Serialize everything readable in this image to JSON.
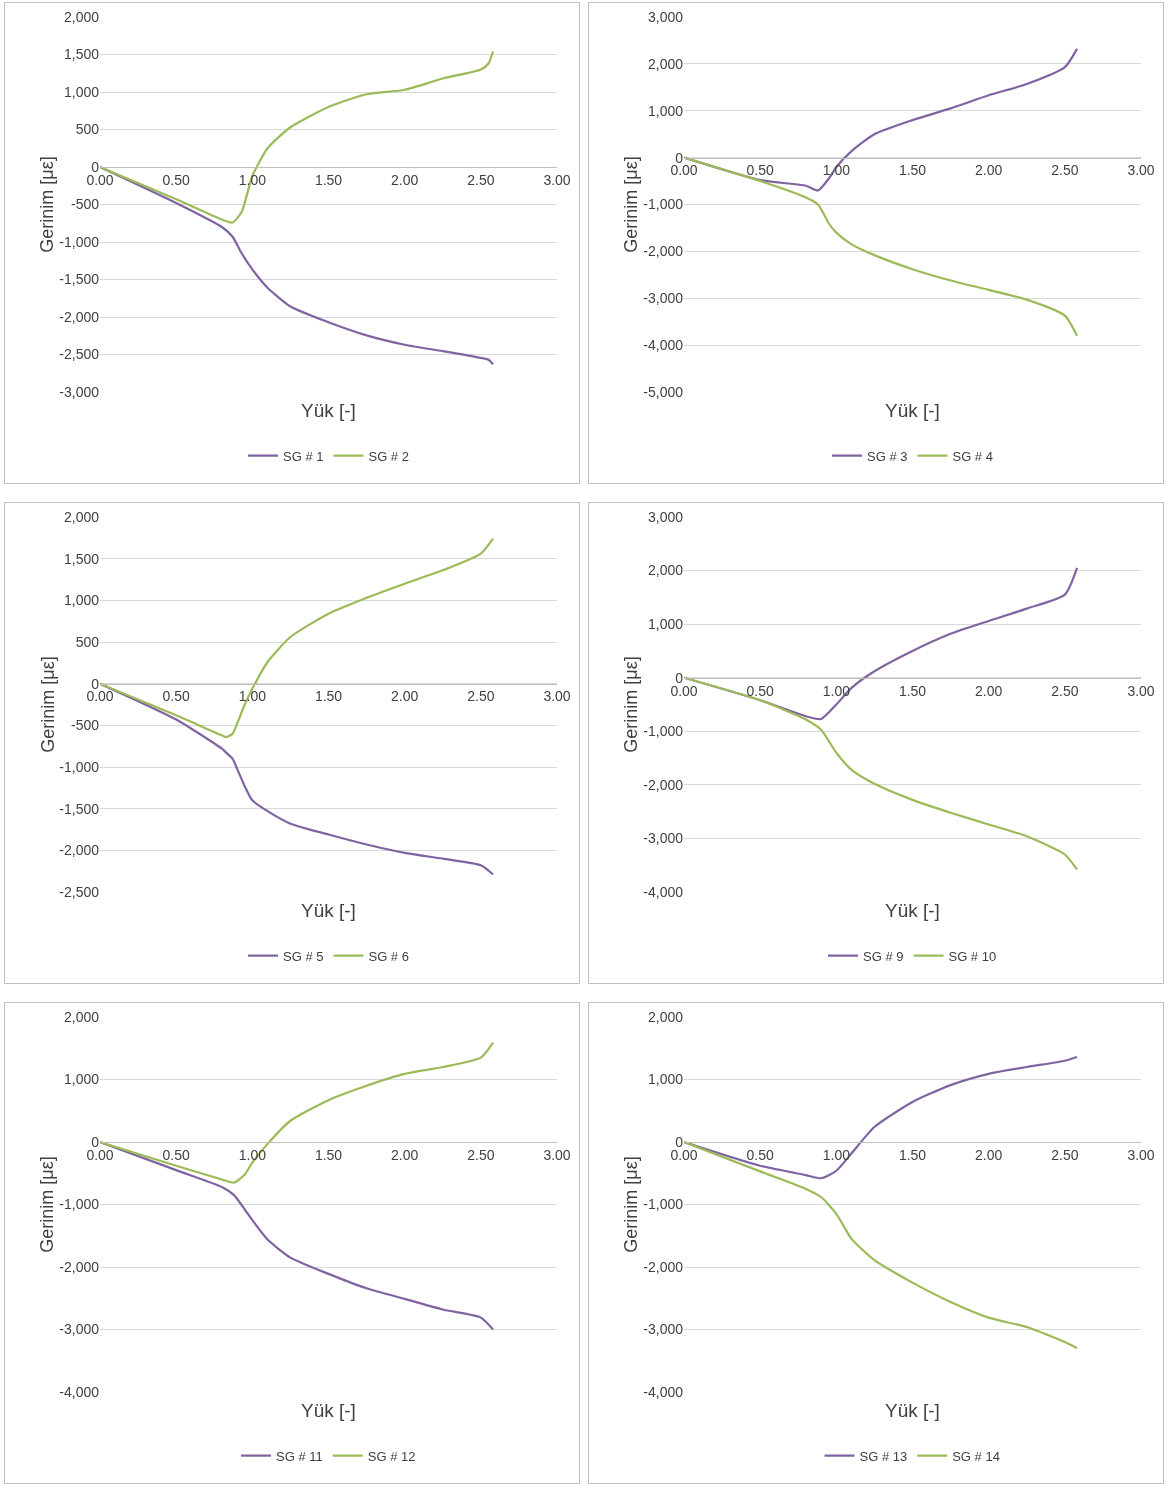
{
  "chart_data": [
    {
      "type": "line",
      "xlabel": "Yük [-]",
      "ylabel": "Gerinim [με]",
      "grid": "y",
      "legend": "bottom",
      "x": [
        0,
        0.5,
        0.8,
        0.87,
        0.93,
        1.0,
        1.1,
        1.25,
        1.5,
        1.75,
        2.0,
        2.25,
        2.5,
        2.55,
        2.58
      ],
      "xlim": [
        0,
        3
      ],
      "xticks": [
        {
          "value": 0,
          "label": "0.00"
        },
        {
          "value": 0.5,
          "label": "0.50"
        },
        {
          "value": 1,
          "label": "1.00"
        },
        {
          "value": 1.5,
          "label": "1.50"
        },
        {
          "value": 2,
          "label": "2.00"
        },
        {
          "value": 2.5,
          "label": "2.50"
        },
        {
          "value": 3,
          "label": "3.00"
        }
      ],
      "ylim": [
        -3000,
        2000
      ],
      "yticks": [
        {
          "value": -3000,
          "label": "-3,000"
        },
        {
          "value": -2500,
          "label": "-2,500"
        },
        {
          "value": -2000,
          "label": "-2,000"
        },
        {
          "value": -1500,
          "label": "-1,500"
        },
        {
          "value": -1000,
          "label": "-1,000"
        },
        {
          "value": -500,
          "label": "-500"
        },
        {
          "value": 0,
          "label": "0"
        },
        {
          "value": 500,
          "label": "500"
        },
        {
          "value": 1000,
          "label": "1,000"
        },
        {
          "value": 1500,
          "label": "1,500"
        },
        {
          "value": 2000,
          "label": "2,000"
        }
      ],
      "series": [
        {
          "name": "SG # 1",
          "color": "#8064a2",
          "values": [
            0,
            -480,
            -800,
            -930,
            -1150,
            -1365,
            -1610,
            -1860,
            -2070,
            -2245,
            -2370,
            -2455,
            -2545,
            -2570,
            -2630
          ]
        },
        {
          "name": "SG # 2",
          "color": "#9bbb59",
          "values": [
            0,
            -430,
            -700,
            -740,
            -600,
            -120,
            250,
            530,
            800,
            970,
            1030,
            1180,
            1300,
            1380,
            1540
          ]
        }
      ]
    },
    {
      "type": "line",
      "xlabel": "Yük [-]",
      "ylabel": "Gerinim [με]",
      "grid": "y",
      "legend": "bottom",
      "x": [
        0,
        0.5,
        0.8,
        0.88,
        0.95,
        1.0,
        1.1,
        1.25,
        1.5,
        1.75,
        2.0,
        2.25,
        2.5,
        2.58
      ],
      "xlim": [
        0,
        3
      ],
      "xticks": [
        {
          "value": 0,
          "label": "0.00"
        },
        {
          "value": 0.5,
          "label": "0.50"
        },
        {
          "value": 1,
          "label": "1.00"
        },
        {
          "value": 1.5,
          "label": "1.50"
        },
        {
          "value": 2,
          "label": "2.00"
        },
        {
          "value": 2.5,
          "label": "2.50"
        },
        {
          "value": 3,
          "label": "3.00"
        }
      ],
      "ylim": [
        -5000,
        3000
      ],
      "yticks": [
        {
          "value": -5000,
          "label": "-5,000"
        },
        {
          "value": -4000,
          "label": "-4,000"
        },
        {
          "value": -3000,
          "label": "-3,000"
        },
        {
          "value": -2000,
          "label": "-2,000"
        },
        {
          "value": -1000,
          "label": "-1,000"
        },
        {
          "value": 0,
          "label": "0"
        },
        {
          "value": 1000,
          "label": "1,000"
        },
        {
          "value": 2000,
          "label": "2,000"
        },
        {
          "value": 3000,
          "label": "3,000"
        }
      ],
      "series": [
        {
          "name": "SG # 3",
          "color": "#8064a2",
          "values": [
            0,
            -480,
            -600,
            -700,
            -450,
            -200,
            140,
            500,
            800,
            1050,
            1330,
            1570,
            1930,
            2320
          ]
        },
        {
          "name": "SG # 4",
          "color": "#9bbb59",
          "values": [
            0,
            -500,
            -850,
            -1000,
            -1400,
            -1600,
            -1850,
            -2080,
            -2380,
            -2620,
            -2820,
            -3030,
            -3370,
            -3800
          ]
        }
      ]
    },
    {
      "type": "line",
      "xlabel": "Yük [-]",
      "ylabel": "Gerinim [με]",
      "grid": "y",
      "legend": "bottom",
      "x": [
        0,
        0.5,
        0.8,
        0.83,
        0.87,
        0.9,
        0.95,
        1.0,
        1.1,
        1.25,
        1.5,
        1.75,
        2.0,
        2.25,
        2.5,
        2.58
      ],
      "xlim": [
        0,
        3
      ],
      "xticks": [
        {
          "value": 0,
          "label": "0.00"
        },
        {
          "value": 0.5,
          "label": "0.50"
        },
        {
          "value": 1,
          "label": "1.00"
        },
        {
          "value": 1.5,
          "label": "1.50"
        },
        {
          "value": 2,
          "label": "2.00"
        },
        {
          "value": 2.5,
          "label": "2.50"
        },
        {
          "value": 3,
          "label": "3.00"
        }
      ],
      "ylim": [
        -2500,
        2000
      ],
      "yticks": [
        {
          "value": -2500,
          "label": "-2,500"
        },
        {
          "value": -2000,
          "label": "-2,000"
        },
        {
          "value": -1500,
          "label": "-1,500"
        },
        {
          "value": -1000,
          "label": "-1,000"
        },
        {
          "value": -500,
          "label": "-500"
        },
        {
          "value": 0,
          "label": "0"
        },
        {
          "value": 500,
          "label": "500"
        },
        {
          "value": 1000,
          "label": "1,000"
        },
        {
          "value": 1500,
          "label": "1,500"
        },
        {
          "value": 2000,
          "label": "2,000"
        }
      ],
      "series": [
        {
          "name": "SG # 5",
          "color": "#8064a2",
          "values": [
            0,
            -430,
            -780,
            -830,
            -900,
            -1020,
            -1230,
            -1400,
            -1530,
            -1680,
            -1810,
            -1930,
            -2030,
            -2100,
            -2180,
            -2290
          ]
        },
        {
          "name": "SG # 6",
          "color": "#9bbb59",
          "values": [
            0,
            -380,
            -620,
            -640,
            -600,
            -480,
            -250,
            -60,
            260,
            560,
            840,
            1030,
            1200,
            1360,
            1560,
            1740
          ]
        }
      ]
    },
    {
      "type": "line",
      "xlabel": "Yük [-]",
      "ylabel": "Gerinim [με]",
      "grid": "y",
      "legend": "bottom",
      "x": [
        0,
        0.5,
        0.8,
        0.9,
        1.0,
        1.1,
        1.25,
        1.5,
        1.75,
        2.0,
        2.25,
        2.5,
        2.58
      ],
      "xlim": [
        0,
        3
      ],
      "xticks": [
        {
          "value": 0,
          "label": "0.00"
        },
        {
          "value": 0.5,
          "label": "0.50"
        },
        {
          "value": 1,
          "label": "1.00"
        },
        {
          "value": 1.5,
          "label": "1.50"
        },
        {
          "value": 2,
          "label": "2.00"
        },
        {
          "value": 2.5,
          "label": "2.50"
        },
        {
          "value": 3,
          "label": "3.00"
        }
      ],
      "ylim": [
        -4000,
        3000
      ],
      "yticks": [
        {
          "value": -4000,
          "label": "-4,000"
        },
        {
          "value": -3000,
          "label": "-3,000"
        },
        {
          "value": -2000,
          "label": "-2,000"
        },
        {
          "value": -1000,
          "label": "-1,000"
        },
        {
          "value": 0,
          "label": "0"
        },
        {
          "value": 1000,
          "label": "1,000"
        },
        {
          "value": 2000,
          "label": "2,000"
        },
        {
          "value": 3000,
          "label": "3,000"
        }
      ],
      "series": [
        {
          "name": "SG # 9",
          "color": "#8064a2",
          "values": [
            0,
            -420,
            -720,
            -770,
            -500,
            -190,
            120,
            500,
            820,
            1060,
            1290,
            1550,
            2050
          ]
        },
        {
          "name": "SG # 10",
          "color": "#9bbb59",
          "values": [
            0,
            -420,
            -780,
            -970,
            -1400,
            -1720,
            -1980,
            -2280,
            -2520,
            -2740,
            -2960,
            -3300,
            -3580
          ]
        }
      ]
    },
    {
      "type": "line",
      "xlabel": "Yük [-]",
      "ylabel": "Gerinim [με]",
      "grid": "y",
      "legend": "bottom",
      "x": [
        0,
        0.5,
        0.8,
        0.88,
        0.95,
        1.0,
        1.1,
        1.25,
        1.5,
        1.75,
        2.0,
        2.25,
        2.5,
        2.58
      ],
      "xlim": [
        0,
        3
      ],
      "xticks": [
        {
          "value": 0,
          "label": "0.00"
        },
        {
          "value": 0.5,
          "label": "0.50"
        },
        {
          "value": 1,
          "label": "1.00"
        },
        {
          "value": 1.5,
          "label": "1.50"
        },
        {
          "value": 2,
          "label": "2.00"
        },
        {
          "value": 2.5,
          "label": "2.50"
        },
        {
          "value": 3,
          "label": "3.00"
        }
      ],
      "ylim": [
        -4000,
        2000
      ],
      "yticks": [
        {
          "value": -4000,
          "label": "-4,000"
        },
        {
          "value": -3000,
          "label": "-3,000"
        },
        {
          "value": -2000,
          "label": "-2,000"
        },
        {
          "value": -1000,
          "label": "-1,000"
        },
        {
          "value": 0,
          "label": "0"
        },
        {
          "value": 1000,
          "label": "1,000"
        },
        {
          "value": 2000,
          "label": "2,000"
        }
      ],
      "series": [
        {
          "name": "SG # 11",
          "color": "#8064a2",
          "values": [
            0,
            -450,
            -720,
            -850,
            -1080,
            -1250,
            -1560,
            -1850,
            -2110,
            -2340,
            -2510,
            -2680,
            -2810,
            -3000
          ]
        },
        {
          "name": "SG # 12",
          "color": "#9bbb59",
          "values": [
            0,
            -380,
            -600,
            -650,
            -520,
            -330,
            -30,
            340,
            670,
            900,
            1090,
            1200,
            1350,
            1590
          ]
        }
      ]
    },
    {
      "type": "line",
      "xlabel": "Yük [-]",
      "ylabel": "Gerinim [με]",
      "grid": "y",
      "legend": "bottom",
      "x": [
        0,
        0.5,
        0.8,
        0.9,
        1.0,
        1.1,
        1.25,
        1.5,
        1.75,
        2.0,
        2.25,
        2.5,
        2.58
      ],
      "xlim": [
        0,
        3
      ],
      "xticks": [
        {
          "value": 0,
          "label": "0.00"
        },
        {
          "value": 0.5,
          "label": "0.50"
        },
        {
          "value": 1,
          "label": "1.00"
        },
        {
          "value": 1.5,
          "label": "1.50"
        },
        {
          "value": 2,
          "label": "2.00"
        },
        {
          "value": 2.5,
          "label": "2.50"
        },
        {
          "value": 3,
          "label": "3.00"
        }
      ],
      "ylim": [
        -4000,
        2000
      ],
      "yticks": [
        {
          "value": -4000,
          "label": "-4,000"
        },
        {
          "value": -3000,
          "label": "-3,000"
        },
        {
          "value": -2000,
          "label": "-2,000"
        },
        {
          "value": -1000,
          "label": "-1,000"
        },
        {
          "value": 0,
          "label": "0"
        },
        {
          "value": 1000,
          "label": "1,000"
        },
        {
          "value": 2000,
          "label": "2,000"
        }
      ],
      "series": [
        {
          "name": "SG # 13",
          "color": "#8064a2",
          "values": [
            0,
            -380,
            -530,
            -580,
            -460,
            -180,
            240,
            640,
            910,
            1090,
            1200,
            1300,
            1360
          ]
        },
        {
          "name": "SG # 14",
          "color": "#9bbb59",
          "values": [
            0,
            -470,
            -750,
            -880,
            -1150,
            -1550,
            -1890,
            -2250,
            -2560,
            -2810,
            -2960,
            -3200,
            -3300
          ]
        }
      ]
    }
  ]
}
